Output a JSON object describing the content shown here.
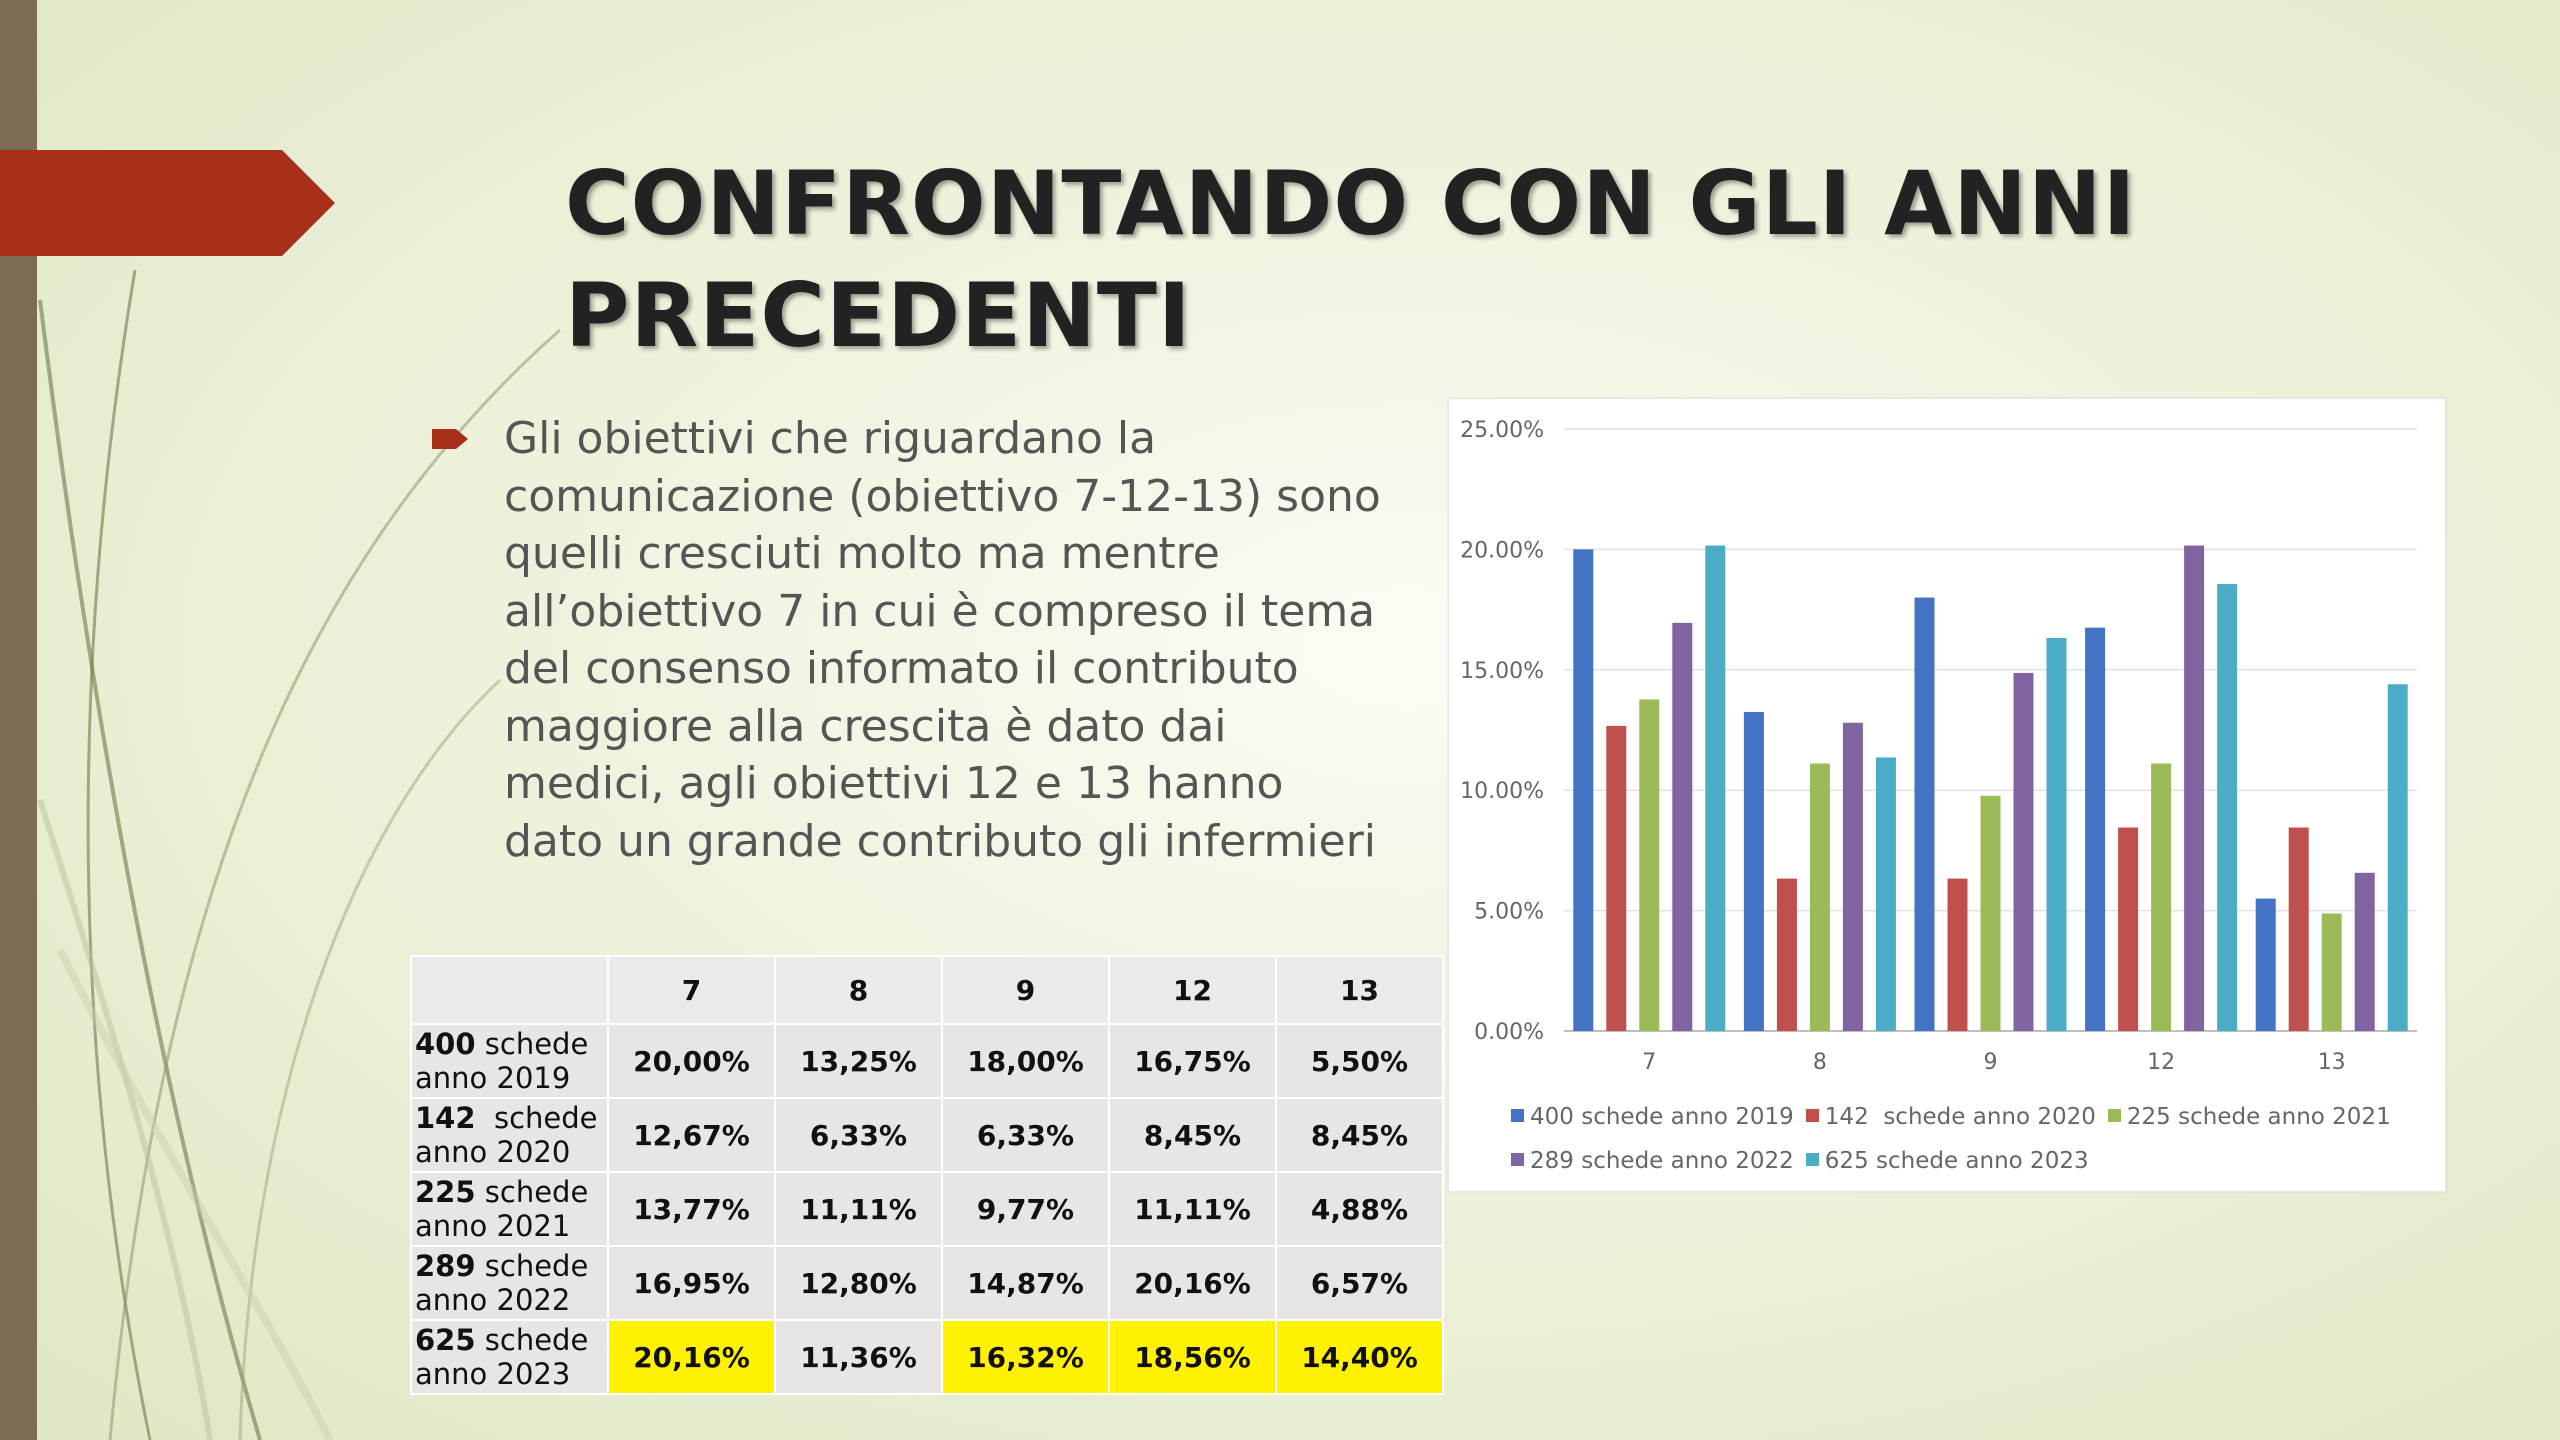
{
  "slide": {
    "title": "CONFRONTANDO CON GLI ANNI PRECEDENTI",
    "bullet_text": "Gli obiettivi che riguardano la comunicazione (obiettivo 7-12-13) sono quelli cresciuti molto ma mentre all’obiettivo 7 in cui è compreso il tema del consenso informato il contributo maggiore alla crescita è dato dai medici, agli obiettivi 12 e 13 hanno dato un grande contributo gli infermieri",
    "accent_color": "#a8301a",
    "highlight_color": "#fff200"
  },
  "table": {
    "columns": [
      "7",
      "8",
      "9",
      "12",
      "13"
    ],
    "rows": [
      {
        "count": "400",
        "label_rest": " schede",
        "label_line2": "anno 2019",
        "values": [
          "20,00%",
          "13,25%",
          "18,00%",
          "16,75%",
          "5,50%"
        ]
      },
      {
        "count": "142",
        "label_rest": "  schede",
        "label_line2": "anno 2020",
        "values": [
          "12,67%",
          "6,33%",
          "6,33%",
          "8,45%",
          "8,45%"
        ]
      },
      {
        "count": "225",
        "label_rest": " schede",
        "label_line2": "anno 2021",
        "values": [
          "13,77%",
          "11,11%",
          "9,77%",
          "11,11%",
          "4,88%"
        ]
      },
      {
        "count": "289",
        "label_rest": " schede",
        "label_line2": "anno 2022",
        "values": [
          "16,95%",
          "12,80%",
          "14,87%",
          "20,16%",
          "6,57%"
        ]
      },
      {
        "count": "625",
        "label_rest": " schede",
        "label_line2": "anno 2023",
        "values": [
          "20,16%",
          "11,36%",
          "16,32%",
          "18,56%",
          "14,40%"
        ],
        "highlighted": [
          true,
          false,
          true,
          true,
          true
        ]
      }
    ]
  },
  "chart_data": {
    "type": "bar",
    "categories": [
      "7",
      "8",
      "9",
      "12",
      "13"
    ],
    "y_ticks": [
      "0.00%",
      "5.00%",
      "10.00%",
      "15.00%",
      "20.00%",
      "25.00%"
    ],
    "ylim": [
      0,
      25
    ],
    "grid": true,
    "legend_position": "bottom",
    "series": [
      {
        "name": "400 schede anno 2019",
        "color": "#4472c4",
        "values": [
          20.0,
          13.25,
          18.0,
          16.75,
          5.5
        ]
      },
      {
        "name": "142  schede anno 2020",
        "color": "#c0504d",
        "values": [
          12.67,
          6.33,
          6.33,
          8.45,
          8.45
        ]
      },
      {
        "name": "225 schede anno 2021",
        "color": "#9bbb59",
        "values": [
          13.77,
          11.11,
          9.77,
          11.11,
          4.88
        ]
      },
      {
        "name": "289 schede anno 2022",
        "color": "#8064a2",
        "values": [
          16.95,
          12.8,
          14.87,
          20.16,
          6.57
        ]
      },
      {
        "name": "625 schede anno 2023",
        "color": "#4bacc6",
        "values": [
          20.16,
          11.36,
          16.32,
          18.56,
          14.4
        ]
      }
    ]
  }
}
